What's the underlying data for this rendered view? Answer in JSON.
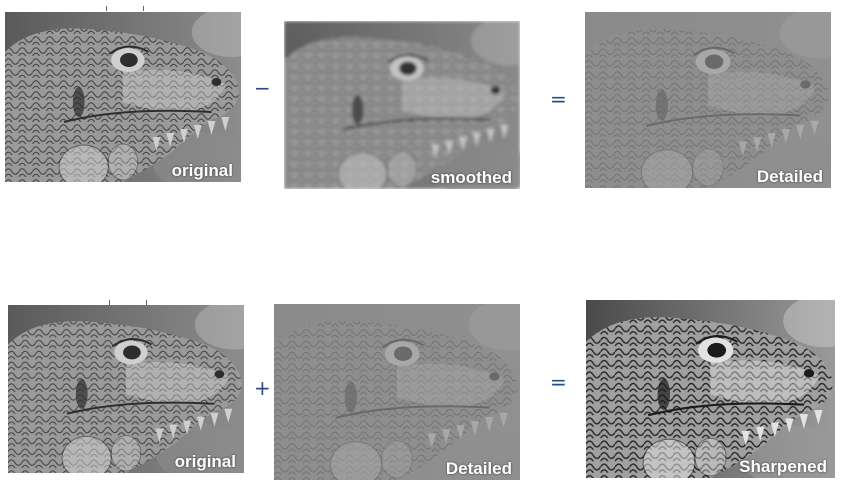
{
  "row1": {
    "panel1": {
      "caption": "original",
      "tone": "original"
    },
    "op1": "−",
    "panel2": {
      "caption": "smoothed",
      "tone": "smoothed"
    },
    "op2": "=",
    "panel3": {
      "caption": "Detailed",
      "tone": "detailed"
    }
  },
  "row2": {
    "panel1": {
      "caption": "original",
      "tone": "original"
    },
    "op1": "+",
    "panel2": {
      "caption": "Detailed",
      "tone": "detailed"
    },
    "op2": "=",
    "panel3": {
      "caption": "Sharpened",
      "tone": "sharpened"
    }
  }
}
